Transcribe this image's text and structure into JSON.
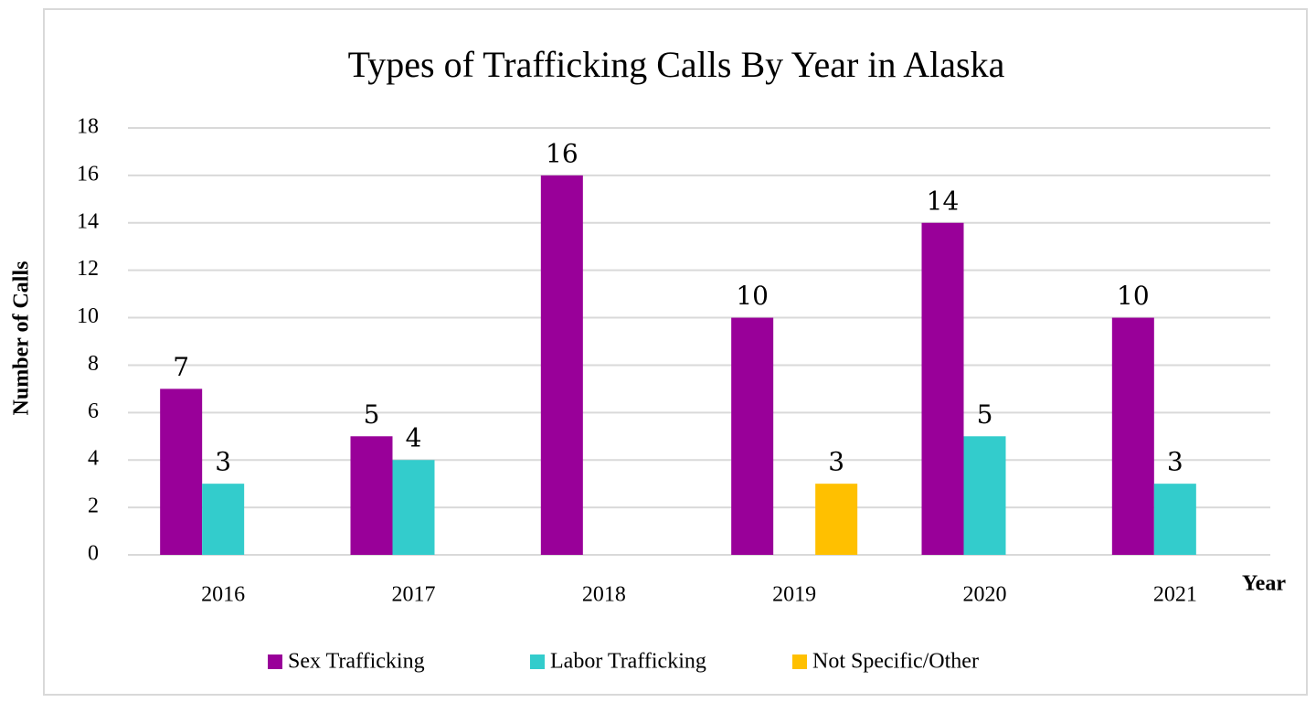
{
  "chart_data": {
    "type": "bar",
    "title": "Types of Trafficking Calls By Year in Alaska",
    "x_label": "Year",
    "y_label": "Number of Calls",
    "categories": [
      "2016",
      "2017",
      "2018",
      "2019",
      "2020",
      "2021"
    ],
    "series": [
      {
        "name": "Sex Trafficking",
        "color": "#990099",
        "values": [
          7,
          5,
          16,
          10,
          14,
          10
        ]
      },
      {
        "name": "Labor Trafficking",
        "color": "#33cccc",
        "values": [
          3,
          4,
          null,
          null,
          5,
          3
        ]
      },
      {
        "name": "Not Specific/Other",
        "color": "#ffc000",
        "values": [
          null,
          null,
          null,
          3,
          null,
          null
        ]
      }
    ],
    "ylim": [
      0,
      18
    ],
    "yticks": [
      0,
      2,
      4,
      6,
      8,
      10,
      12,
      14,
      16,
      18
    ],
    "grid": true,
    "legend": "bottom"
  }
}
